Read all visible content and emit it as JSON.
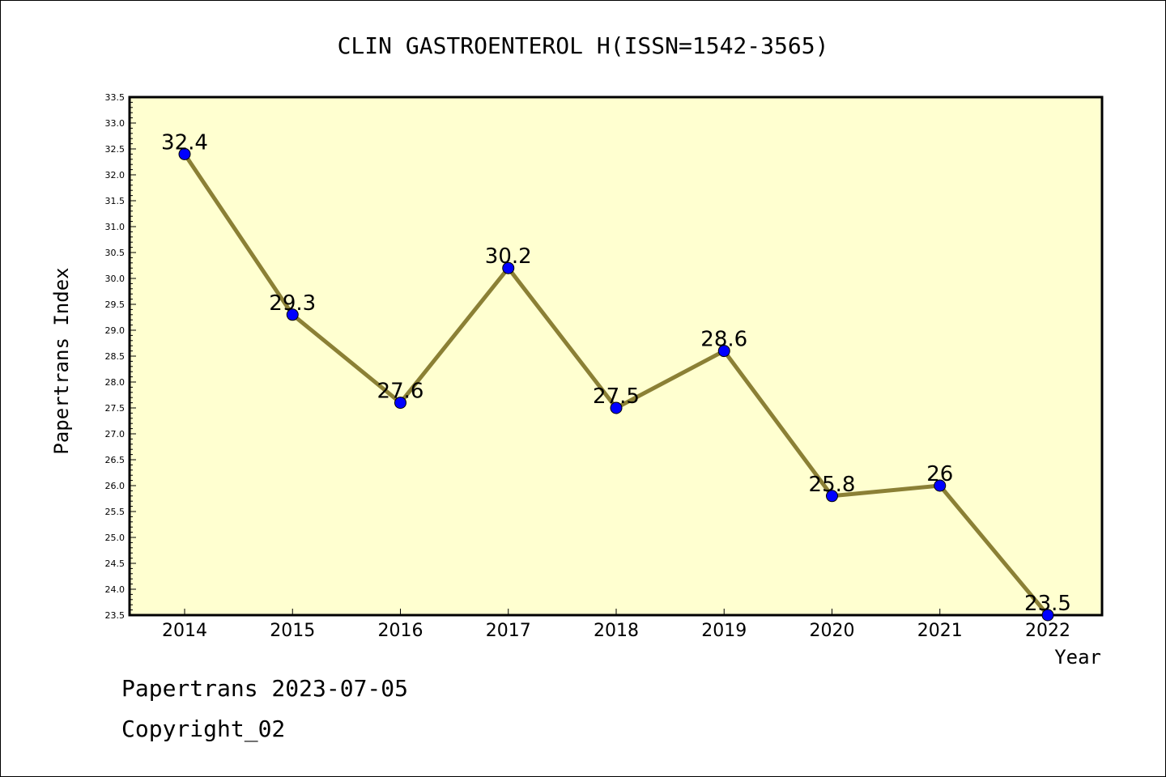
{
  "chart_data": {
    "type": "line",
    "title": "CLIN GASTROENTEROL H(ISSN=1542-3565)",
    "xlabel": "Year",
    "ylabel": "Papertrans Index",
    "categories": [
      "2014",
      "2015",
      "2016",
      "2017",
      "2018",
      "2019",
      "2020",
      "2021",
      "2022"
    ],
    "values": [
      32.4,
      29.3,
      27.6,
      30.2,
      27.5,
      28.6,
      25.8,
      26,
      23.5
    ],
    "data_labels": [
      "32.4",
      "29.3",
      "27.6",
      "30.2",
      "27.5",
      "28.6",
      "25.8",
      "26",
      "23.5"
    ],
    "ylim": [
      23.5,
      33.5
    ],
    "y_major_step": 0.5,
    "y_ticks": [
      "23.5",
      "24.0",
      "24.5",
      "25.0",
      "25.5",
      "26.0",
      "26.5",
      "27.0",
      "27.5",
      "28.0",
      "28.5",
      "29.0",
      "29.5",
      "30.0",
      "30.5",
      "31.0",
      "31.5",
      "32.0",
      "32.5",
      "33.0",
      "33.5"
    ],
    "plot_background": "#ffffd0",
    "line_color": "#8b8035",
    "marker_color": "#0000ff",
    "grid": false
  },
  "footer": {
    "line1": "Papertrans 2023-07-05",
    "line2": "Copyright_02"
  }
}
